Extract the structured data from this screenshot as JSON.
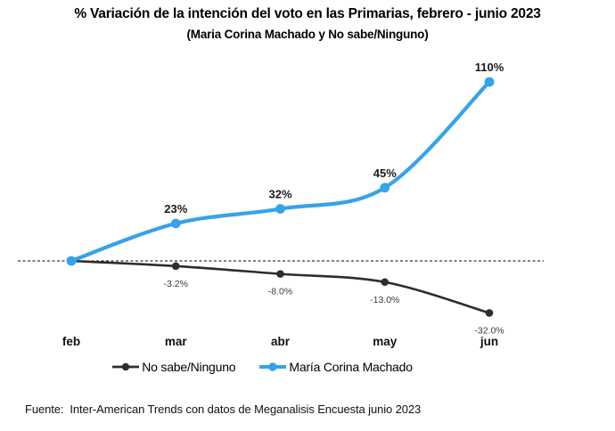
{
  "title": "% Variación de la intención del voto en las Primarias, febrero - junio 2023",
  "subtitle": "(Maria Corina Machado y No sabe/Ninguno)",
  "footer": "Fuente:  Inter-American Trends con datos de Meganalisis Encuesta junio 2023",
  "chart_data": {
    "type": "line",
    "categories": [
      "feb",
      "mar",
      "abr",
      "may",
      "jun"
    ],
    "series": [
      {
        "name": "No sabe/Ninguno",
        "color": "#2d2d2d",
        "values": [
          0,
          -3.2,
          -8.0,
          -13.0,
          -32.0
        ],
        "point_labels": [
          "",
          "-3.2%",
          "-8.0%",
          "-13.0%",
          "-32.0%"
        ]
      },
      {
        "name": "María Corina Machado",
        "color": "#36a2eb",
        "values": [
          0,
          23,
          32,
          45,
          110
        ],
        "point_labels": [
          "",
          "23%",
          "32%",
          "45%",
          "110%"
        ]
      }
    ],
    "baseline": 0,
    "zero_line": "dashed",
    "grid": "off",
    "legend_position": "bottom",
    "ylim": [
      -40,
      120
    ],
    "smooth": true
  }
}
